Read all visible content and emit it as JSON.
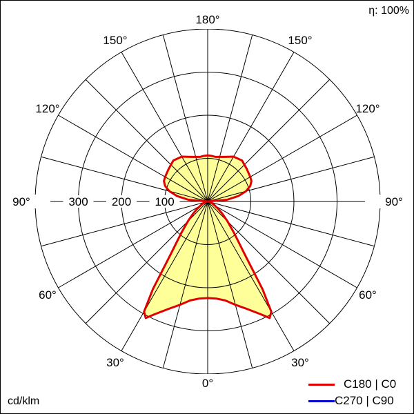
{
  "chart_data": {
    "type": "polar",
    "efficiency_label": "η: 100%",
    "unit_label": "cd/klm",
    "radial_ticks": [
      100,
      200,
      300
    ],
    "radial_max": 400,
    "angle_labels": [
      "180°",
      "150°",
      "150°",
      "120°",
      "120°",
      "90°",
      "90°",
      "60°",
      "60°",
      "30°",
      "30°",
      "0°"
    ],
    "grid": true,
    "legend_position": "bottom-right",
    "series": [
      {
        "name": "C180 | C0",
        "color": "#e00000",
        "gamma": [
          0,
          5,
          10,
          15,
          20,
          25,
          28,
          30,
          32,
          35,
          40,
          45,
          50,
          55,
          60,
          70,
          80,
          90,
          95,
          100,
          105,
          110,
          115,
          120,
          130,
          140,
          150,
          160,
          170,
          175,
          180
        ],
        "intensity": [
          224,
          226,
          233,
          248,
          265,
          288,
          306,
          295,
          240,
          150,
          95,
          65,
          45,
          30,
          20,
          10,
          4,
          0,
          45,
          72,
          92,
          105,
          112,
          114,
          118,
          124,
          120,
          110,
          105,
          106,
          107
        ]
      },
      {
        "name": "C270 | C90",
        "color": "#0000cc",
        "gamma": [
          0,
          5,
          10,
          15,
          20,
          25,
          28,
          30,
          32,
          35,
          40,
          45,
          50,
          55,
          60,
          70,
          80,
          90,
          95,
          100,
          105,
          110,
          115,
          120,
          130,
          140,
          150,
          160,
          170,
          175,
          180
        ],
        "intensity": [
          224,
          226,
          233,
          248,
          265,
          288,
          306,
          295,
          240,
          150,
          95,
          65,
          45,
          30,
          20,
          10,
          4,
          0,
          45,
          72,
          92,
          105,
          112,
          114,
          118,
          124,
          120,
          110,
          105,
          106,
          107
        ]
      }
    ],
    "fill_color": "#ffff99"
  }
}
